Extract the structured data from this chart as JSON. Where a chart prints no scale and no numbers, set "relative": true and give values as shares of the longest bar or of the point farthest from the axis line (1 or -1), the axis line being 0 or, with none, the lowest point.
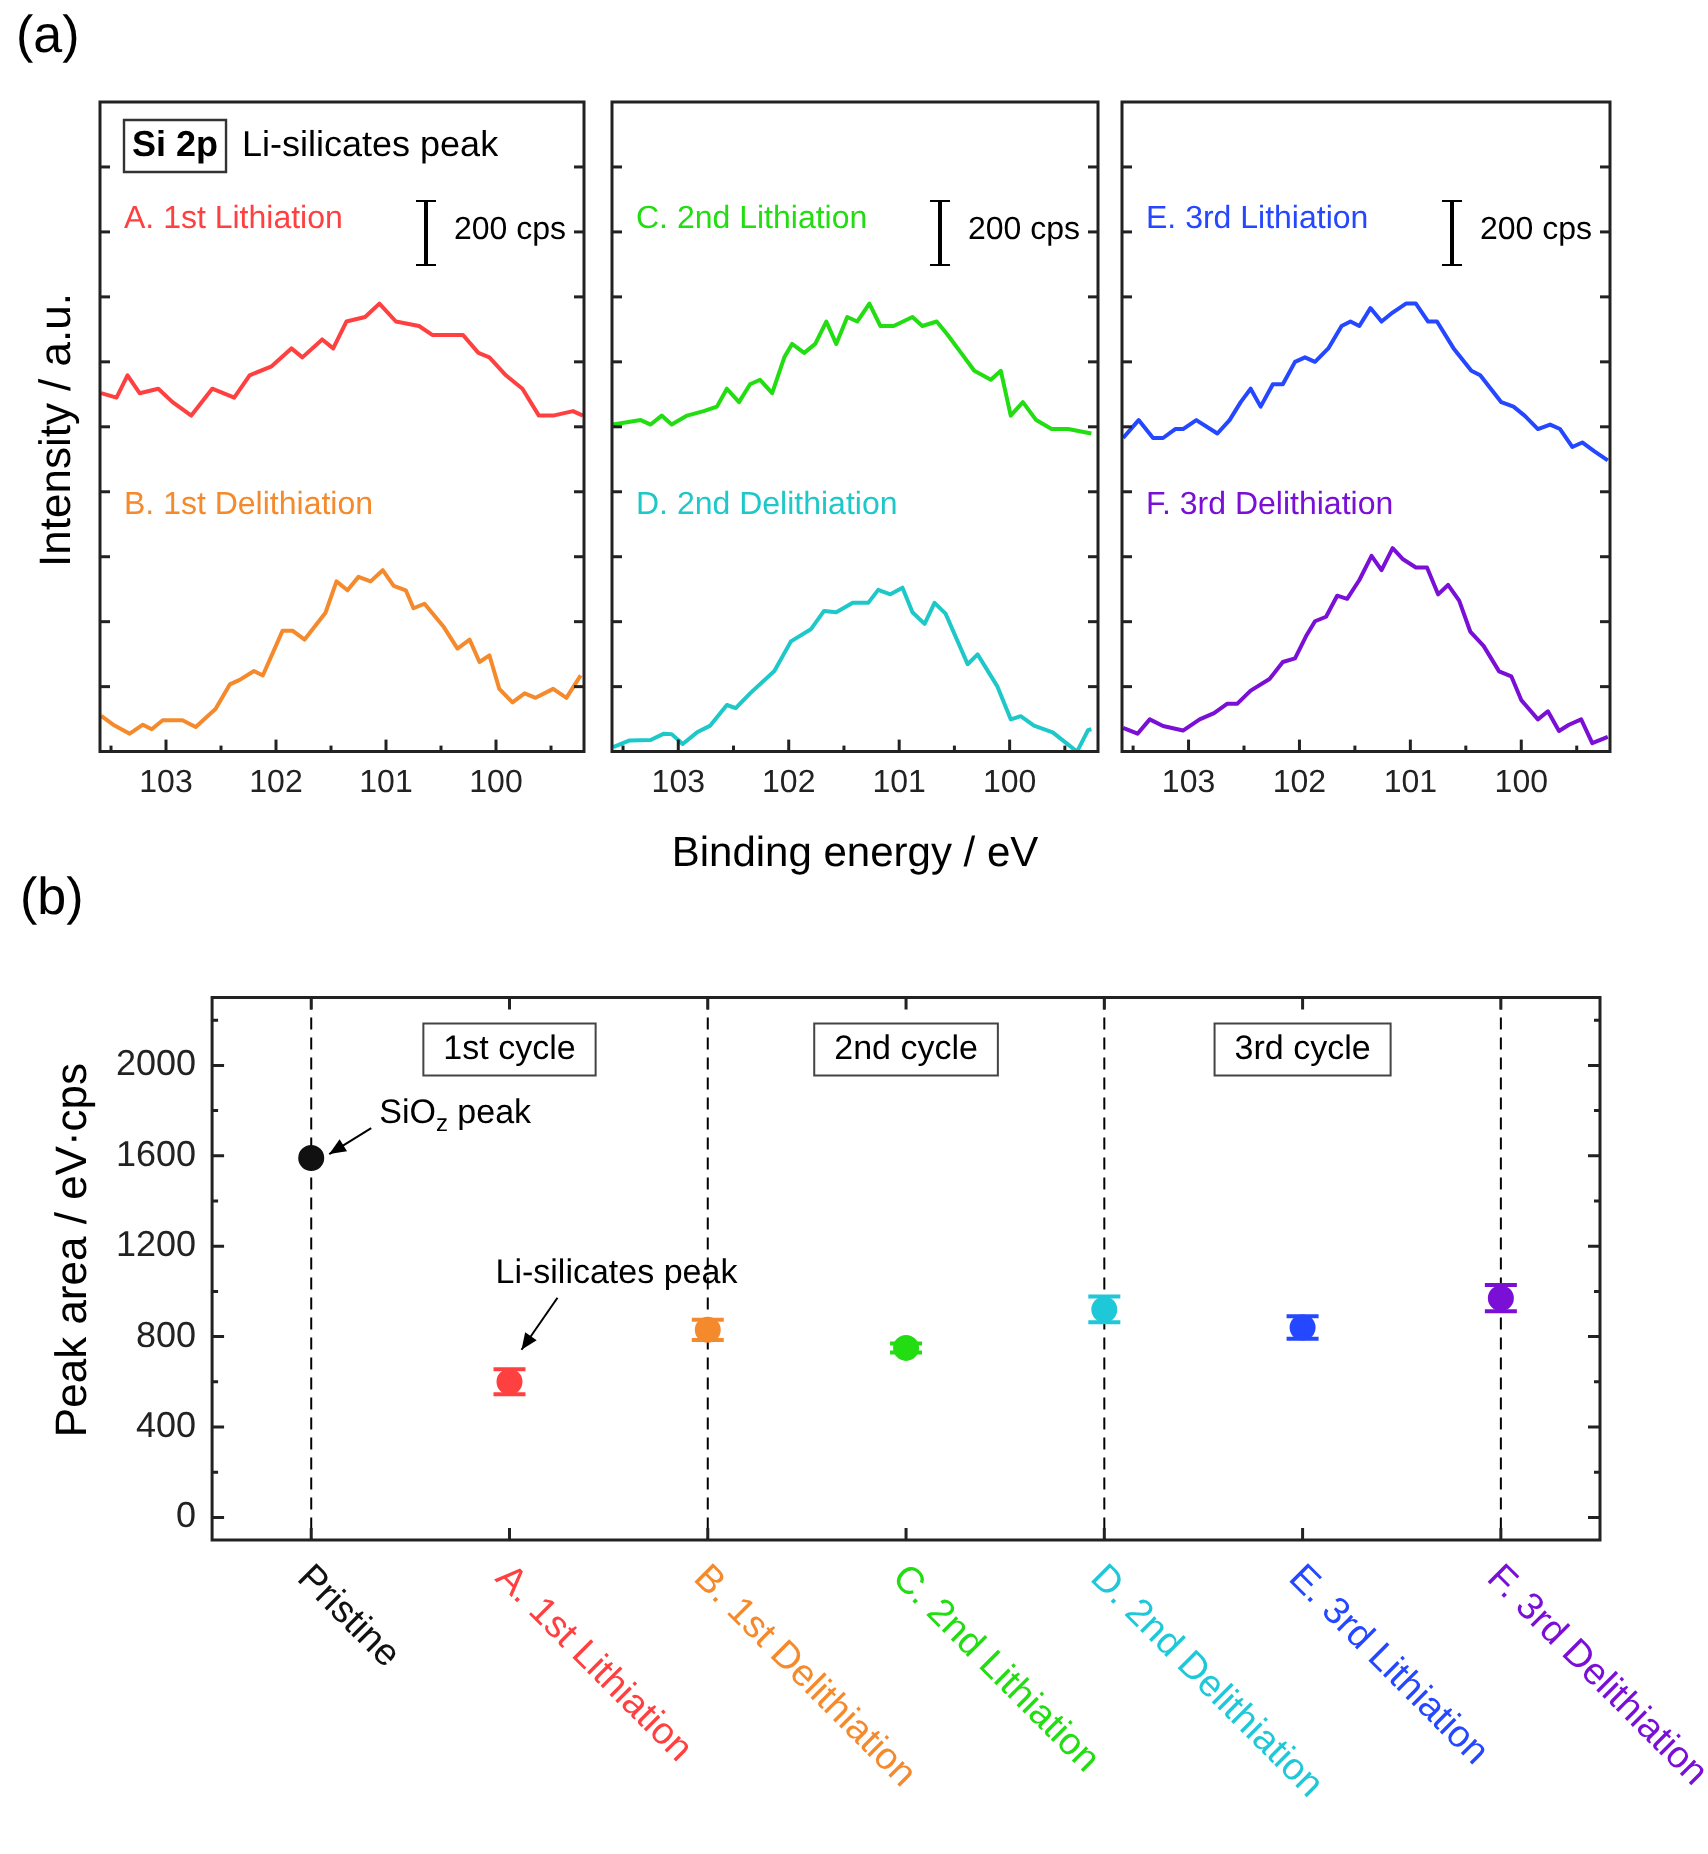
{
  "chart_data": [
    {
      "type": "line",
      "title": "(a)",
      "ylabel": "Intensity / a.u.",
      "annotations": [
        "Si 2p",
        "Li-silicates peak",
        "200 cps"
      ],
      "relative": true,
      "xlim": [
        103.6,
        99.2
      ],
      "xticks": [
        {
          "value": 103.5,
          "label": null
        },
        103,
        {
          "value": 102.5,
          "label": null
        },
        102,
        {
          "value": 101.5,
          "label": null
        },
        101,
        {
          "value": 100.5,
          "label": null
        },
        100,
        {
          "value": 99.5,
          "label": null
        }
      ],
      "series": [
        {
          "name": "A. 1st Lithiation",
          "color": "#ff4040",
          "x": [
            103.59,
            103.45,
            103.35,
            103.24,
            103.07,
            102.94,
            102.77,
            102.58,
            102.38,
            102.24,
            102.04,
            101.86,
            101.76,
            101.58,
            101.48,
            101.36,
            101.19,
            101.06,
            100.91,
            100.7,
            100.58,
            100.3,
            100.16,
            100.06,
            99.91,
            99.76,
            99.61,
            99.48,
            99.3,
            99.21
          ],
          "values": [
            0.8,
            0.79,
            0.84,
            0.8,
            0.81,
            0.78,
            0.75,
            0.81,
            0.79,
            0.84,
            0.86,
            0.9,
            0.88,
            0.92,
            0.9,
            0.96,
            0.97,
            1.0,
            0.96,
            0.95,
            0.93,
            0.93,
            0.89,
            0.88,
            0.84,
            0.81,
            0.75,
            0.75,
            0.76,
            0.75
          ]
        },
        {
          "name": "B. 1st Delithiation",
          "color": "#f58a2c",
          "x": [
            103.59,
            103.48,
            103.33,
            103.21,
            103.13,
            103.03,
            102.85,
            102.73,
            102.55,
            102.42,
            102.33,
            102.2,
            102.12,
            101.94,
            101.85,
            101.74,
            101.55,
            101.45,
            101.35,
            101.25,
            101.14,
            101.03,
            100.93,
            100.82,
            100.75,
            100.65,
            100.48,
            100.35,
            100.24,
            100.15,
            100.06,
            99.97,
            99.85,
            99.74,
            99.64,
            99.48,
            99.36,
            99.23
          ],
          "values": [
            0.08,
            0.06,
            0.04,
            0.06,
            0.05,
            0.07,
            0.07,
            0.055,
            0.095,
            0.15,
            0.16,
            0.18,
            0.17,
            0.27,
            0.27,
            0.25,
            0.31,
            0.38,
            0.36,
            0.39,
            0.38,
            0.405,
            0.37,
            0.36,
            0.32,
            0.33,
            0.28,
            0.23,
            0.25,
            0.2,
            0.215,
            0.14,
            0.11,
            0.13,
            0.12,
            0.14,
            0.12,
            0.17
          ]
        }
      ]
    },
    {
      "type": "line",
      "xlabel": "Binding energy / eV",
      "annotations": [
        "200 cps"
      ],
      "relative": true,
      "xlim": [
        103.6,
        99.2
      ],
      "xticks": [
        {
          "value": 103.5,
          "label": null
        },
        103,
        {
          "value": 102.5,
          "label": null
        },
        102,
        {
          "value": 101.5,
          "label": null
        },
        101,
        {
          "value": 100.5,
          "label": null
        },
        100,
        {
          "value": 99.5,
          "label": null
        }
      ],
      "series": [
        {
          "name": "C. 2nd Lithiation",
          "color": "#22dd11",
          "x": [
            103.59,
            103.34,
            103.25,
            103.15,
            103.06,
            102.92,
            102.77,
            102.65,
            102.56,
            102.45,
            102.35,
            102.26,
            102.15,
            102.04,
            101.97,
            101.86,
            101.76,
            101.66,
            101.57,
            101.47,
            101.38,
            101.27,
            101.17,
            101.05,
            100.88,
            100.79,
            100.66,
            100.56,
            100.44,
            100.32,
            100.17,
            100.08,
            99.99,
            99.88,
            99.76,
            99.62,
            99.47,
            99.26
          ],
          "values": [
            0.73,
            0.74,
            0.73,
            0.75,
            0.73,
            0.75,
            0.76,
            0.77,
            0.81,
            0.78,
            0.82,
            0.83,
            0.8,
            0.88,
            0.91,
            0.89,
            0.91,
            0.96,
            0.91,
            0.97,
            0.96,
            1.0,
            0.95,
            0.95,
            0.97,
            0.95,
            0.96,
            0.93,
            0.89,
            0.85,
            0.83,
            0.85,
            0.75,
            0.78,
            0.74,
            0.72,
            0.72,
            0.71
          ]
        },
        {
          "name": "D. 2nd Delithiation",
          "color": "#1ec8c8",
          "x": [
            103.59,
            103.44,
            103.25,
            103.13,
            103.06,
            102.96,
            102.83,
            102.71,
            102.56,
            102.48,
            102.35,
            102.13,
            101.98,
            101.8,
            101.68,
            101.57,
            101.42,
            101.28,
            101.19,
            101.08,
            100.97,
            100.88,
            100.77,
            100.68,
            100.58,
            100.38,
            100.29,
            100.11,
            99.99,
            99.9,
            99.78,
            99.61,
            99.39,
            99.29,
            99.26
          ],
          "values": [
            0.01,
            0.025,
            0.026,
            0.04,
            0.039,
            0.017,
            0.043,
            0.058,
            0.104,
            0.097,
            0.13,
            0.18,
            0.246,
            0.273,
            0.314,
            0.311,
            0.332,
            0.332,
            0.361,
            0.351,
            0.366,
            0.311,
            0.285,
            0.332,
            0.308,
            0.195,
            0.217,
            0.145,
            0.072,
            0.079,
            0.058,
            0.043,
            0.0,
            0.048,
            0.05
          ]
        }
      ]
    },
    {
      "type": "line",
      "annotations": [
        "200 cps"
      ],
      "relative": true,
      "xlim": [
        103.6,
        99.2
      ],
      "xticks": [
        {
          "value": 103.5,
          "label": null
        },
        103,
        {
          "value": 102.5,
          "label": null
        },
        102,
        {
          "value": 101.5,
          "label": null
        },
        101,
        {
          "value": 100.5,
          "label": null
        },
        100,
        {
          "value": 99.5,
          "label": null
        }
      ],
      "series": [
        {
          "name": "E. 3rd Lithiation",
          "color": "#2447ff",
          "x": [
            103.59,
            103.45,
            103.32,
            103.23,
            103.12,
            103.05,
            102.93,
            102.74,
            102.63,
            102.53,
            102.44,
            102.35,
            102.24,
            102.15,
            102.04,
            101.95,
            101.86,
            101.74,
            101.62,
            101.54,
            101.46,
            101.36,
            101.26,
            101.16,
            101.04,
            100.95,
            100.84,
            100.76,
            100.61,
            100.45,
            100.37,
            100.18,
            100.07,
            99.97,
            99.85,
            99.74,
            99.65,
            99.54,
            99.45,
            99.34,
            99.22
          ],
          "values": [
            0.7,
            0.74,
            0.7,
            0.7,
            0.72,
            0.72,
            0.74,
            0.71,
            0.74,
            0.78,
            0.81,
            0.77,
            0.82,
            0.82,
            0.87,
            0.88,
            0.87,
            0.9,
            0.95,
            0.96,
            0.95,
            0.99,
            0.96,
            0.98,
            1.0,
            1.0,
            0.96,
            0.96,
            0.9,
            0.85,
            0.84,
            0.78,
            0.77,
            0.75,
            0.72,
            0.73,
            0.72,
            0.68,
            0.69,
            0.67,
            0.65
          ]
        },
        {
          "name": "F. 3rd Delithiation",
          "color": "#7a0fd6",
          "x": [
            103.59,
            103.46,
            103.35,
            103.23,
            103.05,
            102.9,
            102.77,
            102.65,
            102.56,
            102.44,
            102.27,
            102.15,
            102.04,
            101.94,
            101.86,
            101.76,
            101.66,
            101.57,
            101.46,
            101.35,
            101.26,
            101.16,
            101.07,
            100.95,
            100.85,
            100.75,
            100.66,
            100.56,
            100.46,
            100.34,
            100.2,
            100.09,
            100.0,
            99.85,
            99.76,
            99.66,
            99.57,
            99.46,
            99.36,
            99.22
          ],
          "values": [
            0.053,
            0.04,
            0.072,
            0.057,
            0.047,
            0.072,
            0.086,
            0.107,
            0.107,
            0.136,
            0.162,
            0.2,
            0.208,
            0.258,
            0.291,
            0.301,
            0.348,
            0.341,
            0.383,
            0.437,
            0.405,
            0.454,
            0.43,
            0.411,
            0.411,
            0.351,
            0.372,
            0.337,
            0.268,
            0.236,
            0.179,
            0.168,
            0.115,
            0.072,
            0.09,
            0.046,
            0.06,
            0.072,
            0.019,
            0.033
          ]
        }
      ]
    },
    {
      "type": "scatter",
      "title": "(b)",
      "ylabel": "Peak area / eV·cps",
      "categories": [
        "Pristine",
        "A. 1st Lithiation",
        "B. 1st Delithiation",
        "C. 2nd Lithiation",
        "D. 2nd Delithiation",
        "E. 3rd Lithiation",
        "F. 3rd Delithiation"
      ],
      "values": [
        1590,
        600,
        830,
        750,
        920,
        840,
        970
      ],
      "errors": [
        null,
        55,
        45,
        20,
        57,
        50,
        58
      ],
      "colors": [
        "#111111",
        "#ff4040",
        "#f58a2c",
        "#22dd11",
        "#1ec8d8",
        "#2447ff",
        "#7a0fd6"
      ],
      "marker": "circle",
      "ylim": [
        -100,
        2300
      ],
      "yticks": [
        0,
        {
          "value": 200,
          "label": null
        },
        400,
        {
          "value": 600,
          "label": null
        },
        800,
        {
          "value": 1000,
          "label": null
        },
        1200,
        {
          "value": 1400,
          "label": null
        },
        1600,
        {
          "value": 1800,
          "label": null
        },
        2000,
        {
          "value": 2200,
          "label": null
        }
      ],
      "ref_lines": [
        {
          "axis": "x",
          "value": "Pristine",
          "line_style": "dashed"
        },
        {
          "axis": "x",
          "value": "B. 1st Delithiation",
          "line_style": "dashed"
        },
        {
          "axis": "x",
          "value": "D. 2nd Delithiation",
          "line_style": "dashed"
        },
        {
          "axis": "x",
          "value": "F. 3rd Delithiation",
          "line_style": "dashed"
        }
      ],
      "annotations": [
        "1st cycle",
        "2nd cycle",
        "3rd cycle",
        {
          "text": "SiO$_{z}$ peak",
          "x": "Pristine",
          "y": 1590
        },
        {
          "text": "Li-silicates peak",
          "x": "A. 1st Lithiation",
          "y": 600
        }
      ]
    }
  ]
}
